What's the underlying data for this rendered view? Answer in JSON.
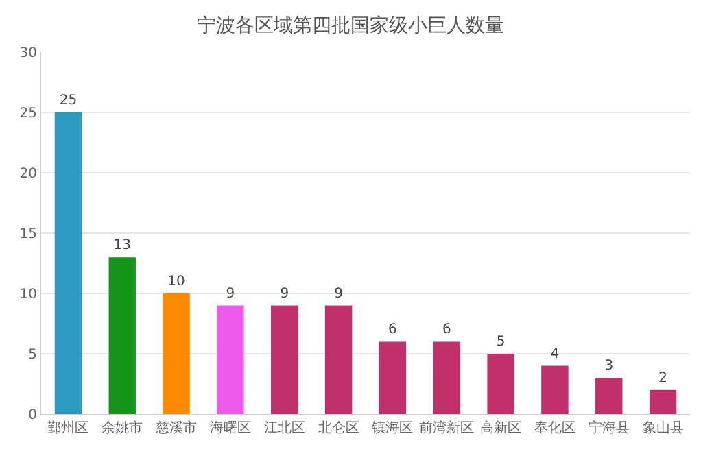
{
  "chart_data": {
    "type": "bar",
    "title": "宁波各区域第四批国家级小巨人数量",
    "categories": [
      "鄞州区",
      "余姚市",
      "慈溪市",
      "海曙区",
      "江北区",
      "北仑区",
      "镇海区",
      "前湾新区",
      "高新区",
      "奉化区",
      "宁海县",
      "象山县"
    ],
    "values": [
      25,
      13,
      10,
      9,
      9,
      9,
      6,
      6,
      5,
      4,
      3,
      2
    ],
    "colors": [
      "#2b9cc0",
      "#15961a",
      "#ff8a00",
      "#ee5cee",
      "#c2306b",
      "#c2306b",
      "#c2306b",
      "#c2306b",
      "#c2306b",
      "#c2306b",
      "#c2306b",
      "#c2306b"
    ],
    "ylim": [
      0,
      30
    ],
    "yticks": [
      0,
      5,
      10,
      15,
      20,
      25,
      30
    ],
    "grid": "y",
    "data_labels": true,
    "legend": false
  }
}
